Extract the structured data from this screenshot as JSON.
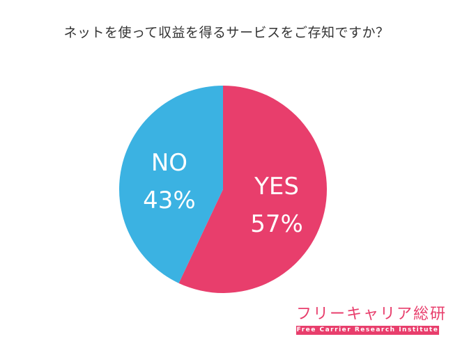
{
  "title": "ネットを使って収益を得るサービスをご存知ですか？",
  "chart_data": {
    "type": "pie",
    "title": "ネットを使って収益を得るサービスをご存知ですか？",
    "slices": [
      {
        "label": "YES",
        "value": 57,
        "value_label": "57%",
        "color": "#e83e6c"
      },
      {
        "label": "NO",
        "value": 43,
        "value_label": "43%",
        "color": "#3bb2e2"
      }
    ],
    "start": "12 o'clock",
    "direction": "clockwise"
  },
  "brand": {
    "name": "フリーキャリア総研",
    "subtitle": "Free Carrier Research Institute",
    "color": "#e83e6c"
  }
}
